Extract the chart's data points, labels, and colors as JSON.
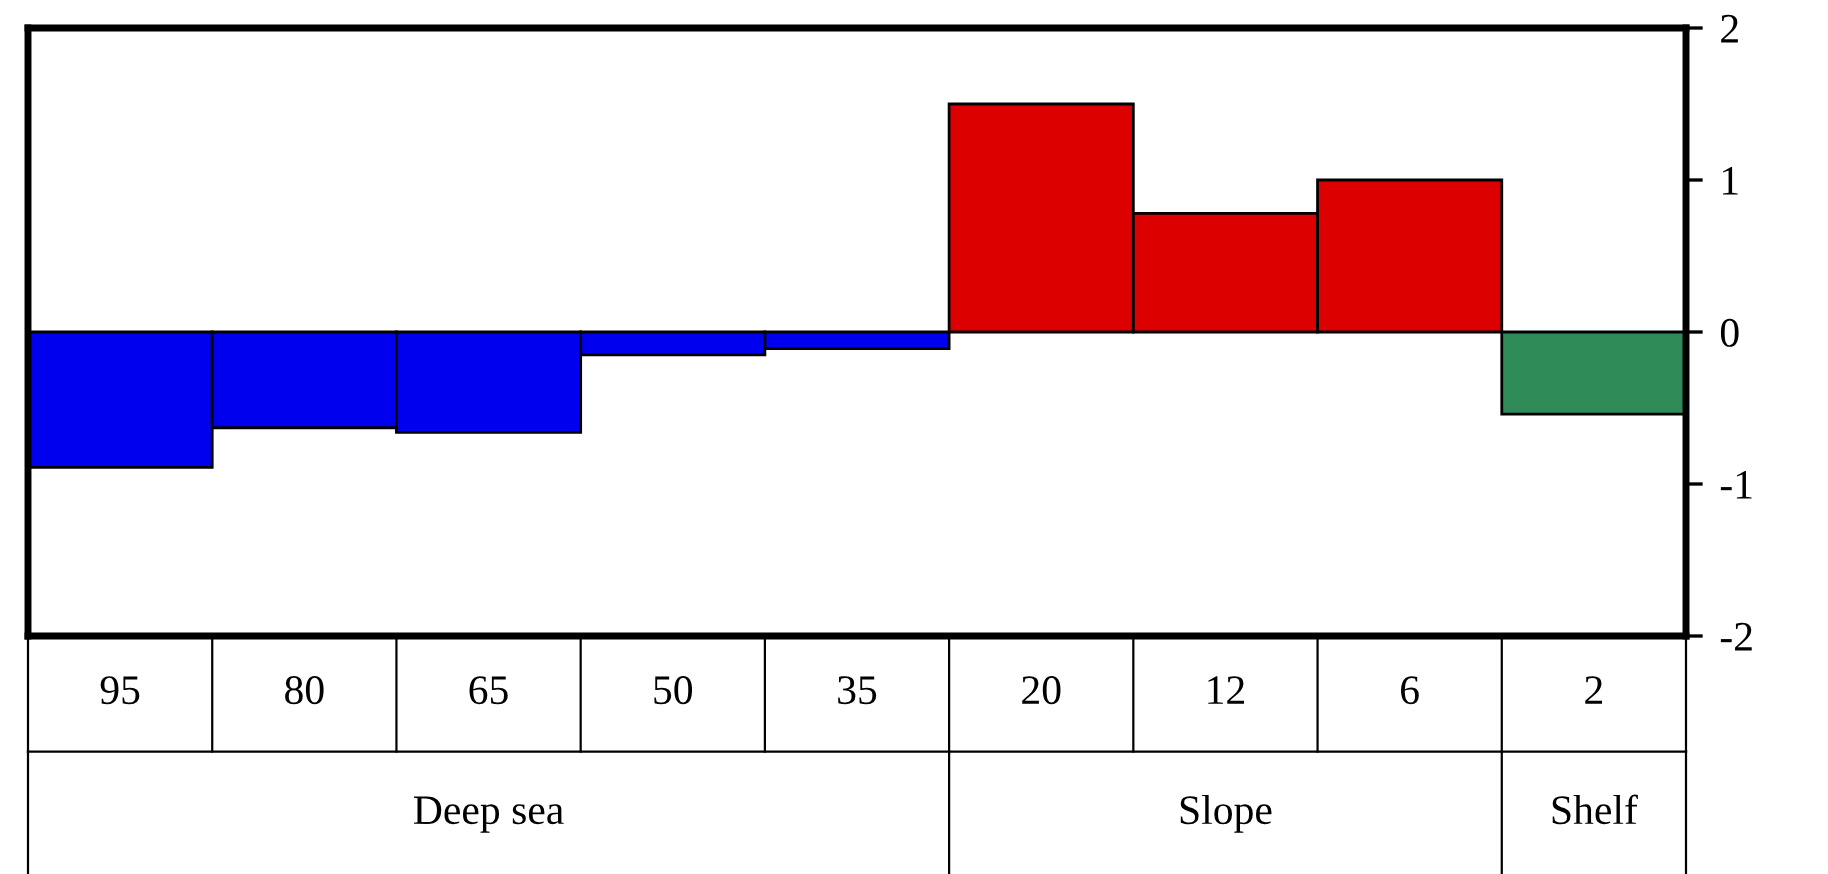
{
  "chart_data": {
    "type": "bar",
    "categories": [
      "95",
      "80",
      "65",
      "50",
      "35",
      "20",
      "12",
      "6",
      "2"
    ],
    "values": [
      -0.89,
      -0.63,
      -0.66,
      -0.15,
      -0.11,
      1.5,
      0.78,
      1.0,
      -0.54
    ],
    "colors": [
      "#0000ee",
      "#0000ee",
      "#0000ee",
      "#0000ee",
      "#0000ee",
      "#dd0000",
      "#dd0000",
      "#dd0000",
      "#2e8b57"
    ],
    "annotations": [
      "Deep sea",
      "Slope",
      "Shelf"
    ],
    "ylim": [
      -2,
      2
    ],
    "yticks": [
      -2,
      -1,
      0,
      1,
      2
    ],
    "grid": false,
    "legend": false
  }
}
